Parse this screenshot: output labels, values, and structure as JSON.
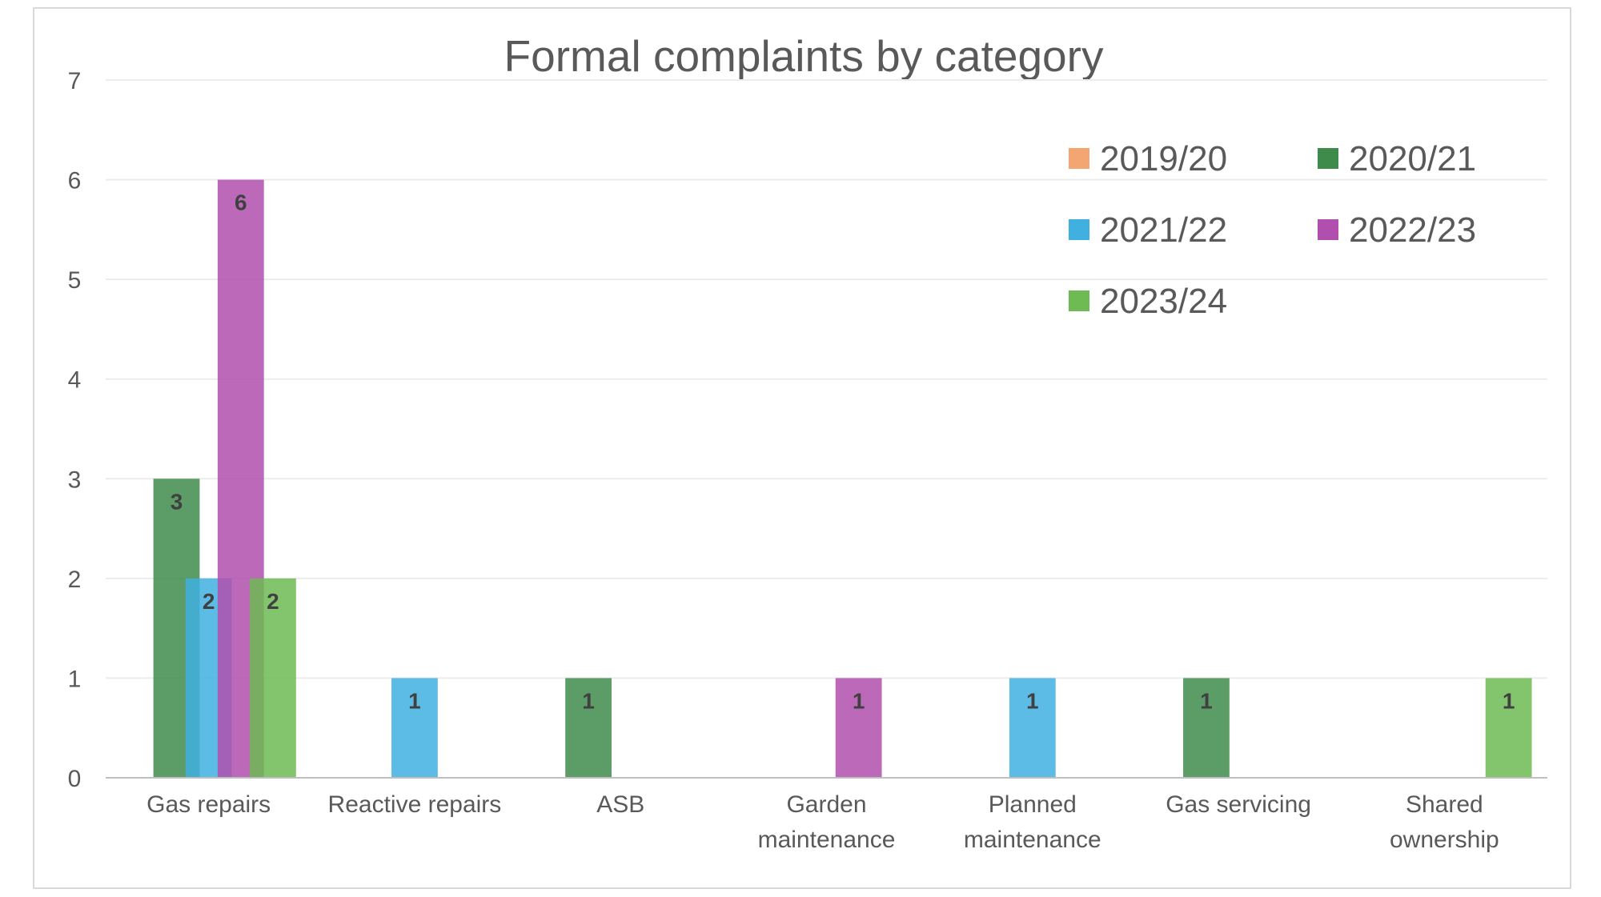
{
  "chart_data": {
    "type": "bar",
    "title": "Formal complaints by category",
    "categories": [
      [
        "Gas repairs"
      ],
      [
        "Reactive repairs"
      ],
      [
        "ASB"
      ],
      [
        "Garden",
        "maintenance"
      ],
      [
        "Planned",
        "maintenance"
      ],
      [
        "Gas servicing"
      ],
      [
        "Shared",
        "ownership"
      ]
    ],
    "series": [
      {
        "name": "2019/20",
        "color": "#f4a672",
        "values": [
          0,
          0,
          0,
          0,
          0,
          0,
          0
        ]
      },
      {
        "name": "2020/21",
        "color": "#3f8b4b",
        "values": [
          3,
          0,
          1,
          0,
          0,
          1,
          0
        ]
      },
      {
        "name": "2021/22",
        "color": "#3fb0e0",
        "values": [
          2,
          1,
          0,
          0,
          1,
          0,
          0
        ]
      },
      {
        "name": "2022/23",
        "color": "#b04fae",
        "values": [
          6,
          0,
          0,
          1,
          0,
          0,
          0
        ]
      },
      {
        "name": "2023/24",
        "color": "#6dbb52",
        "values": [
          2,
          0,
          0,
          0,
          0,
          0,
          1
        ]
      }
    ],
    "ylim": [
      0,
      7
    ],
    "yticks": [
      0,
      1,
      2,
      3,
      4,
      5,
      6,
      7
    ],
    "grid": true,
    "legend_position": "top-right",
    "xlabel": "",
    "ylabel": ""
  }
}
